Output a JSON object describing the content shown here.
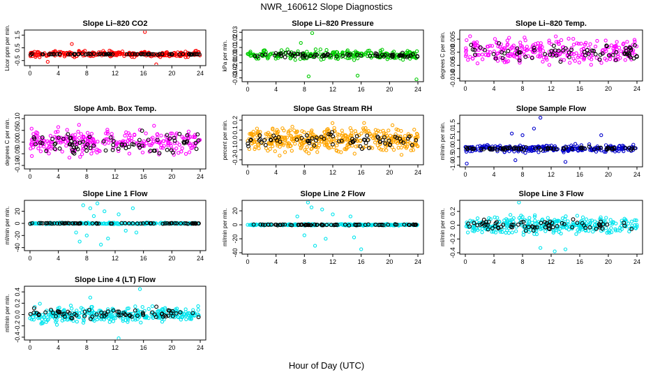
{
  "page": {
    "title": "NWR_160612  Slope Diagnostics",
    "xlabel": "Hour of Day (UTC)"
  },
  "colors": {
    "frame": "#000000",
    "black_points": "#000000"
  },
  "chart_data": [
    {
      "type": "scatter",
      "title": "Slope Li–820 CO2",
      "ylabel": "Licor ppm per min.",
      "xlim": [
        0,
        24
      ],
      "ylim": [
        -0.9,
        1.9
      ],
      "xticks": [
        "0",
        "4",
        "8",
        "12",
        "16",
        "20",
        "24"
      ],
      "yticks": [
        {
          "v": -0.5,
          "label": "-0.5"
        },
        {
          "v": 0.5,
          "label": "0.5"
        },
        {
          "v": 1.5,
          "label": "1.5"
        }
      ],
      "series": [
        {
          "color": "#ff0000",
          "center": 0.02,
          "spread": 0.22,
          "count": 260,
          "outliers": [
            [
              16.2,
              1.75
            ],
            [
              5.9,
              0.8
            ],
            [
              17.8,
              -0.8
            ],
            [
              2.5,
              -0.6
            ]
          ]
        },
        {
          "color": "#000000",
          "center": 0.0,
          "spread": 0.03,
          "count": 70
        }
      ]
    },
    {
      "type": "scatter",
      "title": "Slope Li–820 Pressure",
      "ylabel": "kPa per min.",
      "xlim": [
        0,
        24
      ],
      "ylim": [
        -0.035,
        0.033
      ],
      "xticks": [
        "0",
        "4",
        "8",
        "12",
        "16",
        "20",
        "24"
      ],
      "yticks": [
        {
          "v": -0.03,
          "label": "-0.03"
        },
        {
          "v": -0.02,
          "label": "-0.02"
        },
        {
          "v": -0.01,
          "label": "-0.01"
        },
        {
          "v": 0.0,
          "label": "0.00"
        },
        {
          "v": 0.01,
          "label": "0.01"
        },
        {
          "v": 0.02,
          "label": "0.02"
        },
        {
          "v": 0.03,
          "label": "0.03"
        }
      ],
      "series": [
        {
          "color": "#00cc00",
          "center": 0.0,
          "spread": 0.006,
          "count": 260,
          "outliers": [
            [
              9.1,
              0.029
            ],
            [
              7.5,
              0.016
            ],
            [
              8.6,
              -0.028
            ],
            [
              15.5,
              -0.027
            ],
            [
              23.8,
              -0.032
            ]
          ]
        },
        {
          "color": "#000000",
          "center": 0.0,
          "spread": 0.003,
          "count": 70
        }
      ]
    },
    {
      "type": "scatter",
      "title": "Slope Li–820 Temp.",
      "ylabel": "degrees C per min.",
      "xlim": [
        0,
        24
      ],
      "ylim": [
        -0.011,
        0.0085
      ],
      "xticks": [
        "0",
        "4",
        "8",
        "12",
        "16",
        "20",
        "24"
      ],
      "yticks": [
        {
          "v": -0.01,
          "label": "-0.010"
        },
        {
          "v": -0.005,
          "label": "-0.005"
        },
        {
          "v": 0.0,
          "label": "0.000"
        },
        {
          "v": 0.005,
          "label": "0.005"
        }
      ],
      "series": [
        {
          "color": "#ff00ff",
          "center": 0.0005,
          "spread": 0.0045,
          "count": 280,
          "outliers": []
        },
        {
          "color": "#000000",
          "center": 0.0,
          "spread": 0.0035,
          "count": 70
        }
      ]
    },
    {
      "type": "scatter",
      "title": "Slope Amb. Box Temp.",
      "ylabel": "degrees C per min.",
      "xlim": [
        0,
        24
      ],
      "ylim": [
        -0.115,
        0.115
      ],
      "xticks": [
        "0",
        "4",
        "8",
        "12",
        "16",
        "20",
        "24"
      ],
      "yticks": [
        {
          "v": -0.1,
          "label": "-0.10"
        },
        {
          "v": -0.05,
          "label": "-0.05"
        },
        {
          "v": 0.0,
          "label": "0.00"
        },
        {
          "v": 0.05,
          "label": "0.05"
        },
        {
          "v": 0.1,
          "label": "0.10"
        }
      ],
      "series": [
        {
          "color": "#ff00ff",
          "center": 0.0,
          "spread": 0.05,
          "count": 280,
          "outliers": []
        },
        {
          "color": "#000000",
          "center": 0.0,
          "spread": 0.04,
          "count": 80
        }
      ]
    },
    {
      "type": "scatter",
      "title": "Slope Gas Stream RH",
      "ylabel": "percent per min.",
      "xlim": [
        0,
        24
      ],
      "ylim": [
        -0.25,
        0.25
      ],
      "xticks": [
        "0",
        "4",
        "8",
        "12",
        "16",
        "20",
        "24"
      ],
      "yticks": [
        {
          "v": -0.2,
          "label": "-0.2"
        },
        {
          "v": -0.1,
          "label": "-0.1"
        },
        {
          "v": 0.0,
          "label": "0.0"
        },
        {
          "v": 0.1,
          "label": "0.1"
        },
        {
          "v": 0.2,
          "label": "0.2"
        }
      ],
      "series": [
        {
          "color": "#ffa500",
          "center": 0.0,
          "spread": 0.12,
          "count": 420,
          "outliers": []
        },
        {
          "color": "#000000",
          "center": 0.0,
          "spread": 0.07,
          "count": 70
        }
      ]
    },
    {
      "type": "scatter",
      "title": "Slope Sample Flow",
      "ylabel": "ml/min per min.",
      "xlim": [
        0,
        24
      ],
      "ylim": [
        -1.1,
        2.0
      ],
      "xticks": [
        "0",
        "4",
        "8",
        "12",
        "16",
        "20",
        "24"
      ],
      "yticks": [
        {
          "v": -1.0,
          "label": "-1.0"
        },
        {
          "v": -0.5,
          "label": "-0.5"
        },
        {
          "v": 0.0,
          "label": "0.0"
        },
        {
          "v": 0.5,
          "label": "0.5"
        },
        {
          "v": 1.0,
          "label": "1.0"
        },
        {
          "v": 1.5,
          "label": "1.5"
        }
      ],
      "series": [
        {
          "color": "#0000cc",
          "center": 0.0,
          "spread": 0.2,
          "count": 260,
          "outliers": [
            [
              10.5,
              1.85
            ],
            [
              6.5,
              0.9
            ],
            [
              8.0,
              0.8
            ],
            [
              19.0,
              0.8
            ],
            [
              0.2,
              -0.9
            ],
            [
              7.0,
              -0.7
            ],
            [
              14.0,
              -0.8
            ],
            [
              9.6,
              1.2
            ]
          ]
        },
        {
          "color": "#000000",
          "center": 0.0,
          "spread": 0.08,
          "count": 70
        }
      ]
    },
    {
      "type": "scatter",
      "title": "Slope Line 1 Flow",
      "ylabel": "ml/min per min.",
      "xlim": [
        0,
        24
      ],
      "ylim": [
        -45,
        38
      ],
      "xticks": [
        "0",
        "4",
        "8",
        "12",
        "16",
        "20",
        "24"
      ],
      "yticks": [
        {
          "v": -40,
          "label": "-40"
        },
        {
          "v": -20,
          "label": "-20"
        },
        {
          "v": 0,
          "label": "0"
        },
        {
          "v": 20,
          "label": "20"
        }
      ],
      "series": [
        {
          "color": "#00e5ee",
          "center": 0.0,
          "spread": 1.2,
          "count": 260,
          "outliers": [
            [
              7.5,
              30
            ],
            [
              8.5,
              25
            ],
            [
              9.5,
              33
            ],
            [
              10.5,
              20
            ],
            [
              11.0,
              -25
            ],
            [
              8.0,
              -20
            ],
            [
              7.0,
              -30
            ],
            [
              12.5,
              15
            ],
            [
              14.5,
              25
            ],
            [
              15.0,
              -15
            ],
            [
              10.0,
              -35
            ],
            [
              9.0,
              12
            ],
            [
              6.5,
              -15
            ],
            [
              13.5,
              -12
            ]
          ]
        },
        {
          "color": "#000000",
          "center": 0.0,
          "spread": 0.6,
          "count": 70
        }
      ]
    },
    {
      "type": "scatter",
      "title": "Slope Line 2 Flow",
      "ylabel": "ml/min per min.",
      "xlim": [
        0,
        24
      ],
      "ylim": [
        -42,
        35
      ],
      "xticks": [
        "0",
        "4",
        "8",
        "12",
        "16",
        "20",
        "24"
      ],
      "yticks": [
        {
          "v": -40,
          "label": "-40"
        },
        {
          "v": -20,
          "label": "-20"
        },
        {
          "v": 0,
          "label": "0"
        },
        {
          "v": 20,
          "label": "20"
        }
      ],
      "series": [
        {
          "color": "#00e5ee",
          "center": 0.0,
          "spread": 1.0,
          "count": 260,
          "outliers": [
            [
              8.5,
              32
            ],
            [
              9.0,
              25
            ],
            [
              10.5,
              22
            ],
            [
              11.0,
              -20
            ],
            [
              8.0,
              -15
            ],
            [
              12.0,
              15
            ],
            [
              14.5,
              12
            ],
            [
              15.0,
              -18
            ],
            [
              16.0,
              -35
            ],
            [
              9.5,
              -30
            ],
            [
              7.0,
              12
            ]
          ]
        },
        {
          "color": "#000000",
          "center": 0.0,
          "spread": 0.6,
          "count": 70
        }
      ]
    },
    {
      "type": "scatter",
      "title": "Slope Line 3 Flow",
      "ylabel": "ml/min per min.",
      "xlim": [
        0,
        24
      ],
      "ylim": [
        -0.42,
        0.36
      ],
      "xticks": [
        "0",
        "4",
        "8",
        "12",
        "16",
        "20",
        "24"
      ],
      "yticks": [
        {
          "v": -0.4,
          "label": "-0.4"
        },
        {
          "v": -0.2,
          "label": "-0.2"
        },
        {
          "v": 0.0,
          "label": "0.0"
        },
        {
          "v": 0.2,
          "label": "0.2"
        }
      ],
      "series": [
        {
          "color": "#00e5ee",
          "center": 0.0,
          "spread": 0.12,
          "count": 320,
          "outliers": [
            [
              7.5,
              0.33
            ],
            [
              12.5,
              -0.38
            ],
            [
              14.0,
              -0.35
            ],
            [
              10.5,
              -0.33
            ]
          ]
        },
        {
          "color": "#000000",
          "center": 0.0,
          "spread": 0.08,
          "count": 70
        }
      ]
    },
    {
      "type": "scatter",
      "title": "Slope Line 4 (LT) Flow",
      "ylabel": "ml/min per min.",
      "xlim": [
        0,
        24
      ],
      "ylim": [
        -0.45,
        0.5
      ],
      "xticks": [
        "0",
        "4",
        "8",
        "12",
        "16",
        "20",
        "24"
      ],
      "yticks": [
        {
          "v": -0.4,
          "label": "-0.4"
        },
        {
          "v": -0.2,
          "label": "-0.2"
        },
        {
          "v": 0.0,
          "label": "0.0"
        },
        {
          "v": 0.2,
          "label": "0.2"
        },
        {
          "v": 0.4,
          "label": "0.4"
        }
      ],
      "series": [
        {
          "color": "#00e5ee",
          "center": 0.0,
          "spread": 0.13,
          "count": 320,
          "outliers": [
            [
              15.5,
              0.45
            ],
            [
              12.5,
              -0.42
            ],
            [
              8.5,
              0.3
            ]
          ]
        },
        {
          "color": "#000000",
          "center": 0.0,
          "spread": 0.09,
          "count": 70
        }
      ]
    }
  ]
}
